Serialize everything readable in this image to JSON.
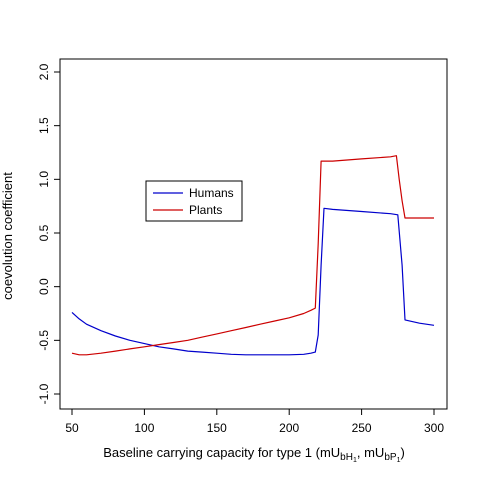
{
  "chart_data": {
    "type": "line",
    "title": "",
    "xlabel_main": "Baseline carrying capacity for type 1 (mU",
    "xlabel_sub1": "bH",
    "xlabel_subsub1": "1",
    "xlabel_sep": ", mU",
    "xlabel_sub2": "bP",
    "xlabel_subsub2": "1",
    "xlabel_end": ")",
    "ylabel": "coevolution coefficient",
    "xlim": [
      50,
      300
    ],
    "ylim": [
      -1.0,
      2.0
    ],
    "x_ticks": [
      50,
      100,
      150,
      200,
      250,
      300
    ],
    "y_ticks": [
      -1.0,
      -0.5,
      0.0,
      0.5,
      1.0,
      1.5,
      2.0
    ],
    "x_tick_labels": [
      "50",
      "100",
      "150",
      "200",
      "250",
      "300"
    ],
    "y_tick_labels": [
      "-1.0",
      "-0.5",
      "0.0",
      "0.5",
      "1.0",
      "1.5",
      "2.0"
    ],
    "legend": {
      "placement": "center-left",
      "entries": [
        "Humans",
        "Plants"
      ]
    },
    "grid": false,
    "series": [
      {
        "name": "Humans",
        "color": "#0000cc",
        "x": [
          50,
          55,
          60,
          70,
          80,
          90,
          100,
          110,
          120,
          130,
          140,
          150,
          160,
          170,
          180,
          190,
          200,
          210,
          215,
          218,
          220,
          222,
          224,
          230,
          250,
          270,
          275,
          278,
          280,
          290,
          300
        ],
        "y": [
          -0.24,
          -0.3,
          -0.35,
          -0.41,
          -0.46,
          -0.5,
          -0.53,
          -0.56,
          -0.58,
          -0.6,
          -0.61,
          -0.62,
          -0.63,
          -0.635,
          -0.635,
          -0.635,
          -0.635,
          -0.63,
          -0.62,
          -0.61,
          -0.45,
          0.2,
          0.73,
          0.72,
          0.7,
          0.68,
          0.67,
          0.2,
          -0.31,
          -0.34,
          -0.36
        ]
      },
      {
        "name": "Plants",
        "color": "#cc0000",
        "x": [
          50,
          55,
          60,
          70,
          80,
          90,
          100,
          110,
          120,
          130,
          140,
          150,
          160,
          170,
          180,
          190,
          200,
          210,
          215,
          218,
          220,
          222,
          224,
          230,
          250,
          270,
          274,
          276,
          278,
          280,
          290,
          300
        ],
        "y": [
          -0.62,
          -0.635,
          -0.635,
          -0.62,
          -0.6,
          -0.58,
          -0.56,
          -0.54,
          -0.52,
          -0.5,
          -0.47,
          -0.44,
          -0.41,
          -0.38,
          -0.35,
          -0.32,
          -0.29,
          -0.25,
          -0.22,
          -0.2,
          0.4,
          1.17,
          1.17,
          1.17,
          1.19,
          1.21,
          1.22,
          1.0,
          0.8,
          0.64,
          0.64,
          0.64
        ]
      }
    ]
  }
}
